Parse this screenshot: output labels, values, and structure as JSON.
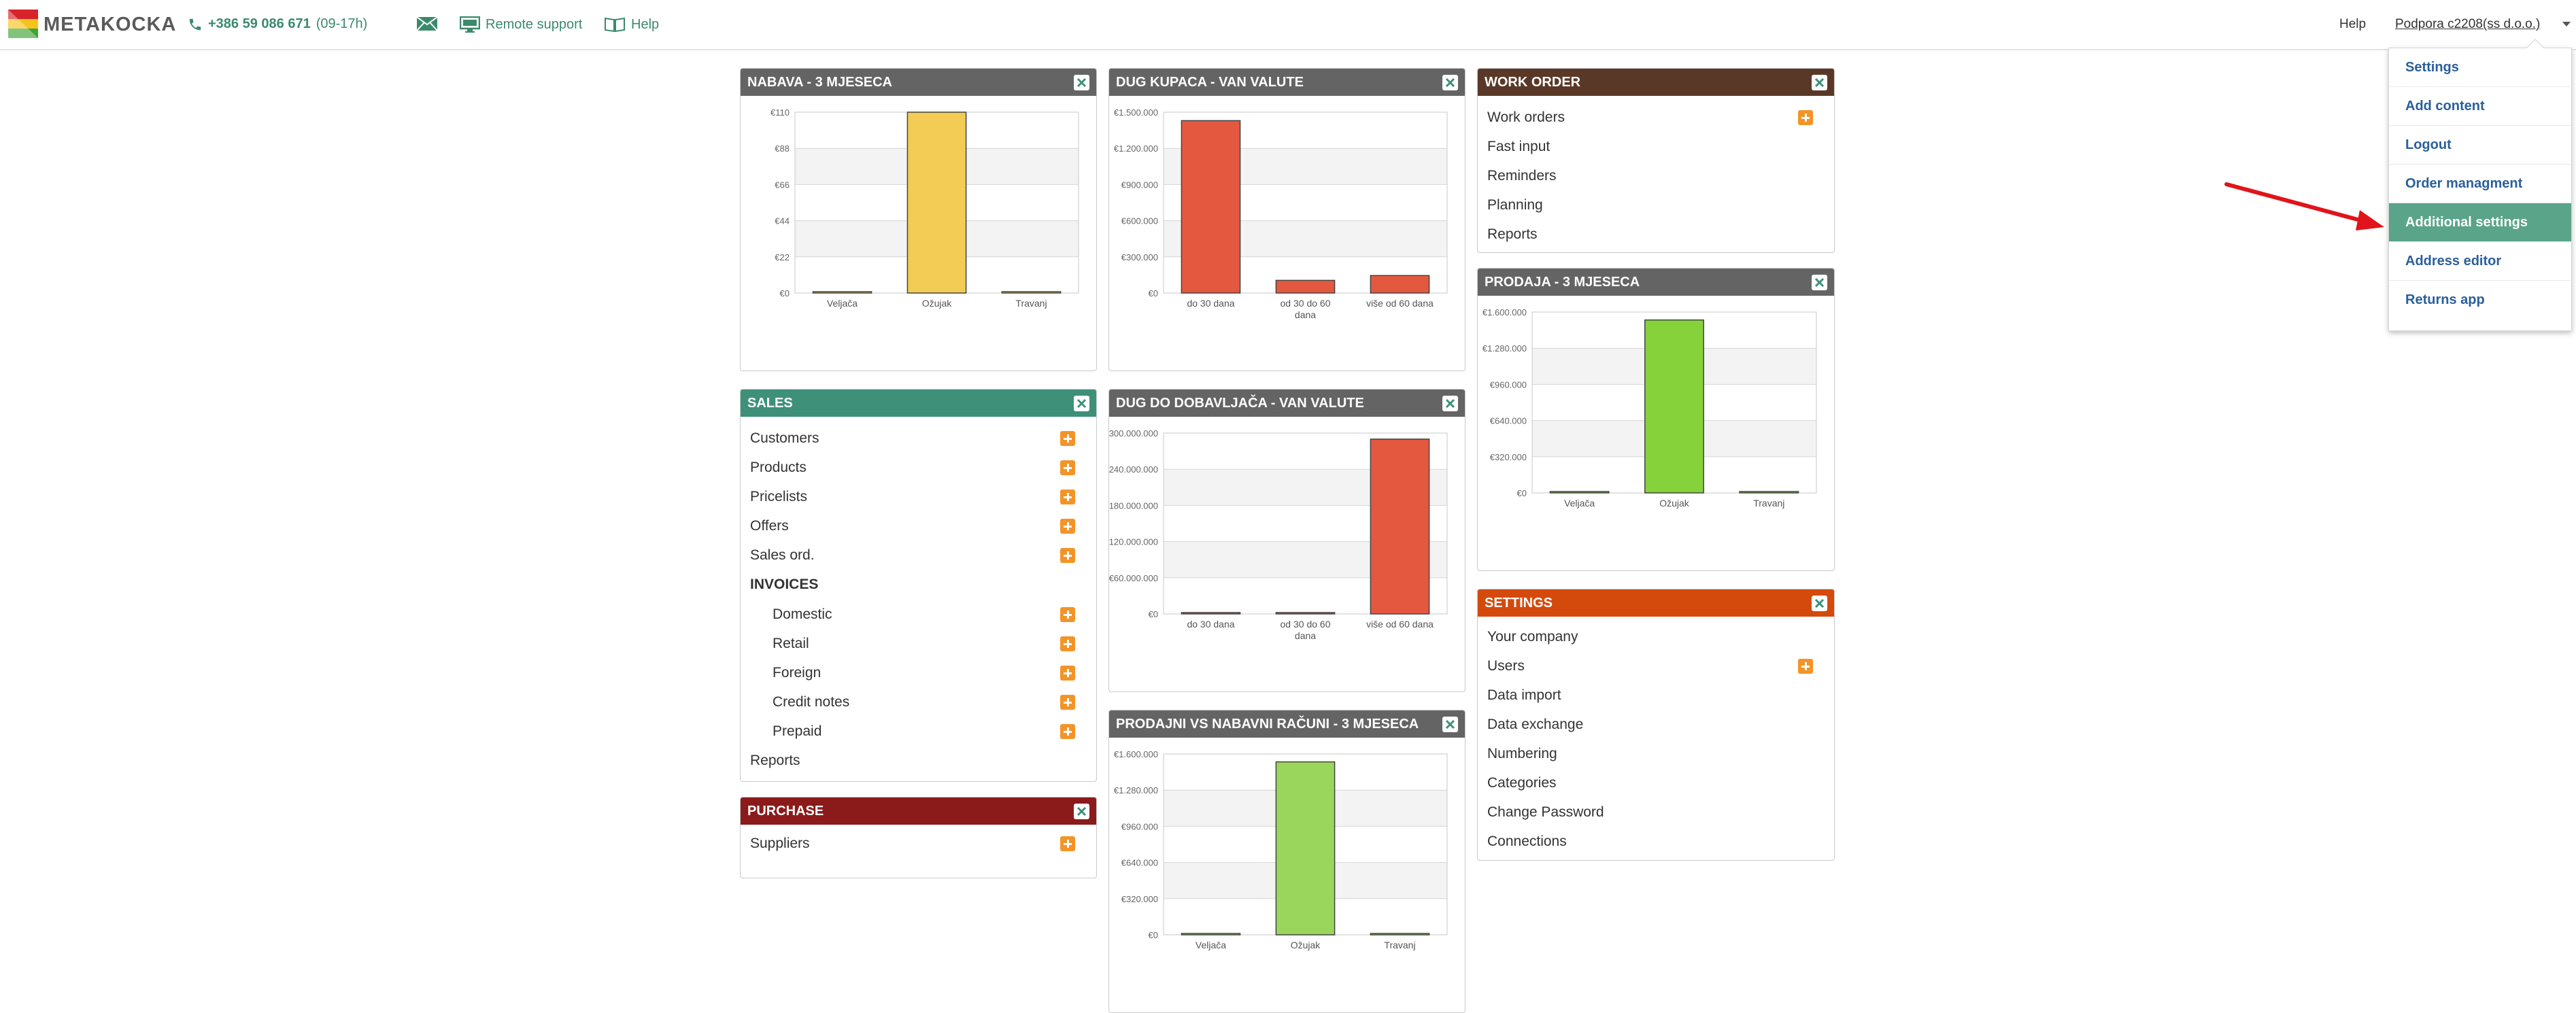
{
  "header": {
    "logo_text": "METAKOCKA",
    "phone": "+386 59 086 671",
    "phone_hours": "(09-17h)",
    "remote_support": "Remote support",
    "help": "Help",
    "help_right": "Help",
    "user": "Podpora c2208(ss d.o.o.)"
  },
  "colors": {
    "brand_green": "#3b8a6e",
    "dropdown_active": "#5aa48a",
    "bar_yellow": "#f2cc55",
    "bar_red": "#e55840",
    "bar_green": "#86d23a",
    "arrow_red": "#e0141a"
  },
  "panels": {
    "nabava": {
      "title": "NABAVA - 3 MJESECA"
    },
    "dug_kupaca": {
      "title": "DUG KUPACA - VAN VALUTE"
    },
    "work_order": {
      "title": "WORK ORDER",
      "items": [
        "Work orders",
        "Fast input",
        "Reminders",
        "Planning",
        "Reports"
      ]
    },
    "sales": {
      "title": "SALES",
      "items": [
        "Customers",
        "Products",
        "Pricelists",
        "Offers",
        "Sales ord."
      ],
      "invoices_header": "INVOICES",
      "invoices": [
        "Domestic",
        "Retail",
        "Foreign",
        "Credit notes",
        "Prepaid"
      ],
      "reports": "Reports"
    },
    "dug_dobavljaca": {
      "title": "DUG DO DOBAVLJAČA - VAN VALUTE"
    },
    "prodaja": {
      "title": "PRODAJA - 3 MJESECA"
    },
    "settings": {
      "title": "SETTINGS",
      "items": [
        "Your company",
        "Users",
        "Data import",
        "Data exchange",
        "Numbering",
        "Categories",
        "Change Password",
        "Connections"
      ]
    },
    "purchase": {
      "title": "PURCHASE",
      "items": [
        "Suppliers"
      ]
    },
    "prodajni_vs": {
      "title": "PRODAJNI VS NABAVNI RAČUNI - 3 MJESECA"
    }
  },
  "dropdown": {
    "items": [
      "Settings",
      "Add content",
      "Logout",
      "Order managment",
      "Additional settings",
      "Address editor",
      "Returns app"
    ],
    "active_index": 4
  },
  "icons": {
    "phone": "phone-icon",
    "mail": "mail-icon",
    "remote": "monitor-icon",
    "help": "book-icon",
    "close": "close-icon",
    "add": "plus-icon"
  },
  "chart_data": [
    {
      "id": "nabava",
      "type": "bar",
      "title": "NABAVA - 3 MJESECA",
      "categories": [
        "Veljača",
        "Ožujak",
        "Travanj"
      ],
      "values": [
        0,
        110,
        0
      ],
      "yticks": [
        "€0",
        "€22",
        "€44",
        "€66",
        "€88",
        "€110"
      ],
      "ylim": [
        0,
        110
      ],
      "color": "#f2cc55",
      "grid": true
    },
    {
      "id": "dug_kupaca",
      "type": "bar",
      "title": "DUG KUPACA - VAN VALUTE",
      "categories": [
        "do 30 dana",
        "od 30 do 60 dana",
        "više od 60 dana"
      ],
      "values": [
        1430000,
        105000,
        145000
      ],
      "yticks": [
        "€0",
        "€300.000",
        "€600.000",
        "€900.000",
        "€1.200.000",
        "€1.500.000"
      ],
      "ylim": [
        0,
        1500000
      ],
      "color": "#e55840",
      "grid": true
    },
    {
      "id": "dug_dobavljaca",
      "type": "bar",
      "title": "DUG DO DOBAVLJAČA - VAN VALUTE",
      "categories": [
        "do 30 dana",
        "od 30 do 60 dana",
        "više od 60 dana"
      ],
      "values": [
        1500000,
        0,
        290000000
      ],
      "yticks": [
        "€0",
        "€60.000.000",
        "€120.000.000",
        "€180.000.000",
        "€240.000.000",
        "€300.000.000"
      ],
      "ylim": [
        0,
        300000000
      ],
      "color": "#e55840",
      "grid": true
    },
    {
      "id": "prodaja",
      "type": "bar",
      "title": "PRODAJA - 3 MJESECA",
      "categories": [
        "Veljača",
        "Ožujak",
        "Travanj"
      ],
      "values": [
        0,
        1530000,
        0
      ],
      "yticks": [
        "€0",
        "€320.000",
        "€640.000",
        "€960.000",
        "€1.280.000",
        "€1.600.000"
      ],
      "ylim": [
        0,
        1600000
      ],
      "color": "#86d23a",
      "grid": true
    },
    {
      "id": "prodajni_vs",
      "type": "bar",
      "title": "PRODAJNI VS NABAVNI RAČUNI - 3 MJESECA",
      "categories": [
        "Veljača",
        "Ožujak",
        "Travanj"
      ],
      "values": [
        0,
        1530000,
        0
      ],
      "yticks": [
        "€0",
        "€320.000",
        "€640.000",
        "€960.000",
        "€1.280.000",
        "€1.600.000"
      ],
      "ylim": [
        0,
        1600000
      ],
      "color": "#9ad65c",
      "grid": true
    }
  ]
}
